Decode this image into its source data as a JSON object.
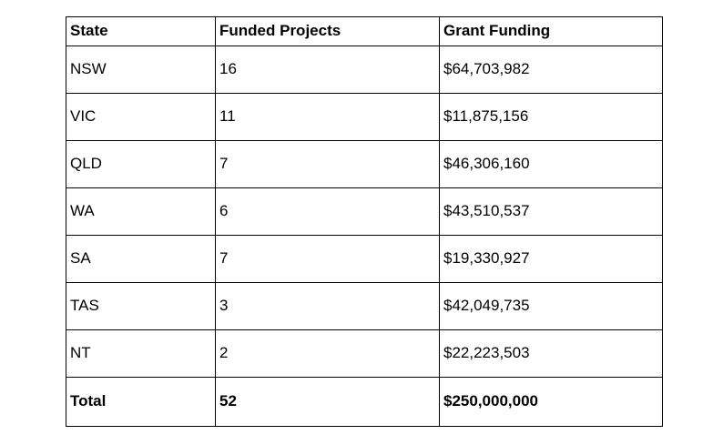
{
  "table": {
    "columns": [
      "State",
      "Funded Projects",
      "Grant Funding"
    ],
    "rows": [
      {
        "state": "NSW",
        "funded_projects": "16",
        "grant_funding": "$64,703,982"
      },
      {
        "state": "VIC",
        "funded_projects": "11",
        "grant_funding": "$11,875,156"
      },
      {
        "state": "QLD",
        "funded_projects": "7",
        "grant_funding": "$46,306,160"
      },
      {
        "state": "WA",
        "funded_projects": "6",
        "grant_funding": "$43,510,537"
      },
      {
        "state": "SA",
        "funded_projects": "7",
        "grant_funding": "$19,330,927"
      },
      {
        "state": "TAS",
        "funded_projects": "3",
        "grant_funding": "$42,049,735"
      },
      {
        "state": "NT",
        "funded_projects": "2",
        "grant_funding": "$22,223,503"
      }
    ],
    "total": {
      "state": "Total",
      "funded_projects": "52",
      "grant_funding": "$250,000,000"
    },
    "colors": {
      "border": "#000000",
      "text": "#000000",
      "background": "#ffffff"
    }
  }
}
